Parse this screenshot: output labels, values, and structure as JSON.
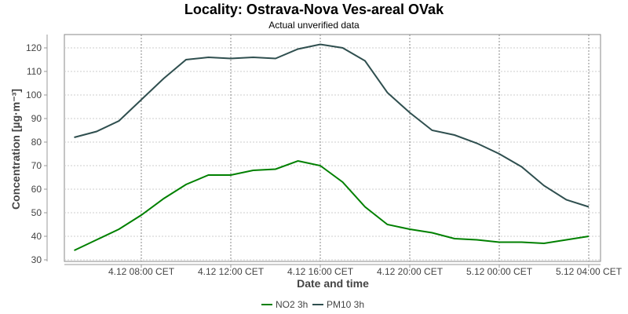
{
  "chart_data": {
    "type": "line",
    "title": "Locality: Ostrava-Nova Ves-areal OVak",
    "subtitle": "Actual unverified data",
    "xlabel": "Date and time",
    "ylabel": "Concentration [µg·m⁻³]",
    "ylim": [
      30,
      125
    ],
    "yticks": [
      30,
      40,
      50,
      60,
      70,
      80,
      90,
      100,
      110,
      120
    ],
    "x_hours_from_0800": [
      -3,
      -2,
      -1,
      0,
      1,
      2,
      3,
      4,
      5,
      6,
      7,
      8,
      9,
      10,
      11,
      12,
      13,
      14,
      15,
      16,
      17,
      18,
      19,
      20
    ],
    "xticks": [
      {
        "label": "4.12 08:00 CET",
        "hour": 0
      },
      {
        "label": "4.12 12:00 CET",
        "hour": 4
      },
      {
        "label": "4.12 16:00 CET",
        "hour": 8
      },
      {
        "label": "4.12 20:00 CET",
        "hour": 12
      },
      {
        "label": "5.12 00:00 CET",
        "hour": 16
      },
      {
        "label": "5.12 04:00 CET",
        "hour": 20
      }
    ],
    "grid": true,
    "legend_position": "bottom",
    "series": [
      {
        "name": "NO2 3h",
        "color": "#008000",
        "values": [
          34,
          38.5,
          43,
          49,
          56,
          62,
          66,
          66,
          68,
          68.5,
          72,
          70,
          63,
          52.5,
          45,
          43,
          41.5,
          39,
          38.5,
          37.5,
          37.5,
          37,
          38.5,
          40
        ]
      },
      {
        "name": "PM10 3h",
        "color": "#2f4f4f",
        "values": [
          82,
          84.5,
          89,
          98,
          107,
          115,
          116,
          115.5,
          116,
          115.5,
          119.5,
          121.5,
          120,
          114.5,
          101,
          92.5,
          85,
          83,
          79.5,
          75,
          69.5,
          61.5,
          55.5,
          52.5
        ]
      }
    ]
  }
}
